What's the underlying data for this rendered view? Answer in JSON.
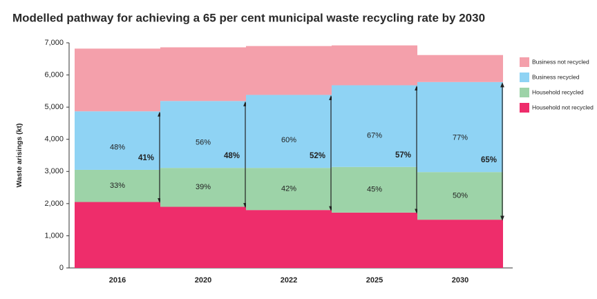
{
  "chart_data": {
    "type": "stacked-step",
    "title": "Modelled pathway for achieving a 65 per cent municipal waste recycling rate by 2030",
    "y_label": "Waste arisings (kt)",
    "categories": [
      "2016",
      "2020",
      "2022",
      "2025",
      "2030"
    ],
    "series": [
      {
        "name": "Business not recycled",
        "color": "#f4a0ab",
        "values": [
          1950,
          1670,
          1520,
          1240,
          840
        ]
      },
      {
        "name": "Business recycled",
        "color": "#8fd3f4",
        "values": [
          1820,
          2080,
          2270,
          2540,
          2800
        ]
      },
      {
        "name": "Household recycled",
        "color": "#9dd3a8",
        "values": [
          1000,
          1210,
          1310,
          1420,
          1480
        ]
      },
      {
        "name": "Household not recycled",
        "color": "#ee2d6b",
        "values": [
          2050,
          1900,
          1800,
          1720,
          1500
        ]
      }
    ],
    "business_rate_labels": [
      "48%",
      "56%",
      "60%",
      "67%",
      "77%"
    ],
    "household_rate_labels": [
      "33%",
      "39%",
      "42%",
      "45%",
      "50%"
    ],
    "total_rate_labels": [
      "41%",
      "48%",
      "52%",
      "57%",
      "65%"
    ],
    "ylim": [
      0,
      7000
    ],
    "yticks": [
      0,
      {
        "value": 1000,
        "label": "1,000"
      },
      {
        "value": 2000,
        "label": "2,000"
      },
      {
        "value": 3000,
        "label": "3,000"
      },
      {
        "value": 4000,
        "label": "4,000"
      },
      {
        "value": 5000,
        "label": "5,000"
      },
      {
        "value": 6000,
        "label": "6,000"
      },
      {
        "value": 7000,
        "label": "7,000"
      }
    ],
    "legend": "right"
  }
}
